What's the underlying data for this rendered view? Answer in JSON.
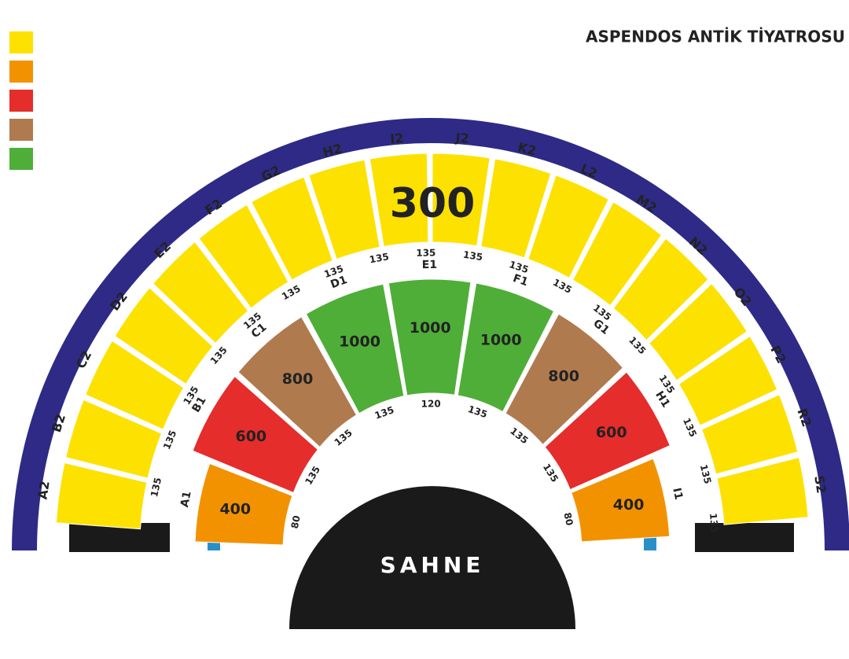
{
  "header": {
    "title": "ASPENDOS ANTİK TİYATROSU"
  },
  "legend": {
    "colors": [
      "#fde100",
      "#f39200",
      "#e52d2b",
      "#b07a4f",
      "#4fae38"
    ]
  },
  "upper_tier": {
    "price": "300",
    "color": "#fde100",
    "sections": [
      {
        "name": "A2",
        "capacity": "135"
      },
      {
        "name": "B2",
        "capacity": "135"
      },
      {
        "name": "C2",
        "capacity": "135"
      },
      {
        "name": "D2",
        "capacity": "135"
      },
      {
        "name": "E2",
        "capacity": "135"
      },
      {
        "name": "F2",
        "capacity": "135"
      },
      {
        "name": "G2",
        "capacity": "135"
      },
      {
        "name": "H2",
        "capacity": "135"
      },
      {
        "name": "I2",
        "capacity": "135"
      },
      {
        "name": "J2",
        "capacity": "135"
      },
      {
        "name": "K2",
        "capacity": "135"
      },
      {
        "name": "L2",
        "capacity": "135"
      },
      {
        "name": "M2",
        "capacity": "135"
      },
      {
        "name": "N2",
        "capacity": "135"
      },
      {
        "name": "O2",
        "capacity": "135"
      },
      {
        "name": "P2",
        "capacity": "135"
      },
      {
        "name": "R2",
        "capacity": "135"
      },
      {
        "name": "S2",
        "capacity": "135"
      }
    ]
  },
  "lower_tier": {
    "sections": [
      {
        "name": "A1",
        "capacity": "80",
        "price": "400",
        "color": "#f39200"
      },
      {
        "name": "B1",
        "capacity": "135",
        "price": "600",
        "color": "#e52d2b"
      },
      {
        "name": "C1",
        "capacity": "135",
        "price": "800",
        "color": "#b07a4f"
      },
      {
        "name": "D1",
        "capacity": "135",
        "price": "1000",
        "color": "#4fae38"
      },
      {
        "name": "E1",
        "capacity": "120",
        "price": "1000",
        "color": "#4fae38"
      },
      {
        "name": "F1",
        "capacity": "135",
        "price": "1000",
        "color": "#4fae38"
      },
      {
        "name": "G1",
        "capacity": "135",
        "price": "800",
        "color": "#b07a4f"
      },
      {
        "name": "H1",
        "capacity": "135",
        "price": "600",
        "color": "#e52d2b"
      },
      {
        "name": "I1",
        "capacity": "80",
        "price": "400",
        "color": "#f39200"
      }
    ]
  },
  "stage": {
    "label": "SAHNE"
  }
}
